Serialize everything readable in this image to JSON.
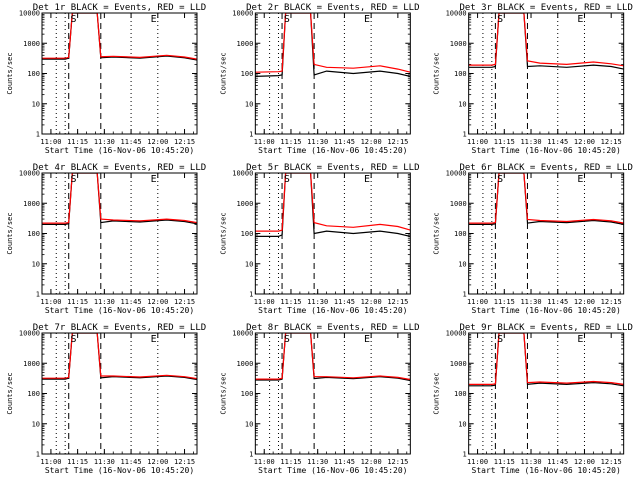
{
  "layout": {
    "rows": 3,
    "cols": 3
  },
  "colors": {
    "events": "#000000",
    "lld": "#ff0000",
    "axes": "#000000",
    "background": "#ffffff"
  },
  "chart_data": [
    {
      "type": "line",
      "title": "Det 1r BLACK = Events, RED = LLD",
      "ylabel": "Counts/sec",
      "xlabel": "Start Time (16-Nov-06 10:45:20)",
      "xticks": [
        "11:00",
        "11:15",
        "11:30",
        "11:45",
        "12:00",
        "12:15"
      ],
      "ytick_labels": [
        "1",
        "10",
        "100",
        "1000",
        "10000"
      ],
      "yscale": "log",
      "ylim": [
        1,
        10000
      ],
      "xlim": [
        "10:55",
        "12:22"
      ],
      "markers": {
        "dotted": [
          "11:03",
          "11:08",
          "11:45",
          "12:00"
        ],
        "dashed": [
          "11:10",
          "11:28"
        ],
        "letters": [
          {
            "text": "S",
            "at": "11:11"
          },
          {
            "text": "E",
            "at": "11:56"
          }
        ]
      },
      "series": [
        {
          "name": "Events",
          "color": "#000000",
          "x": [
            "10:55",
            "11:08",
            "11:10",
            "11:12",
            "11:26",
            "11:28",
            "11:35",
            "11:50",
            "12:05",
            "12:15",
            "12:22"
          ],
          "values": [
            300,
            300,
            320,
            10000,
            10000,
            330,
            350,
            320,
            380,
            330,
            280
          ]
        },
        {
          "name": "LLD",
          "color": "#ff0000",
          "x": [
            "10:55",
            "11:08",
            "11:10",
            "11:12",
            "11:26",
            "11:28",
            "11:35",
            "11:50",
            "12:05",
            "12:15",
            "12:22"
          ],
          "values": [
            320,
            320,
            340,
            10000,
            10000,
            360,
            370,
            340,
            400,
            350,
            300
          ]
        }
      ]
    },
    {
      "type": "line",
      "title": "Det 2r BLACK = Events, RED = LLD",
      "ylabel": "Counts/sec",
      "xlabel": "Start Time (16-Nov-06 10:45:20)",
      "xticks": [
        "11:00",
        "11:15",
        "11:30",
        "11:45",
        "12:00",
        "12:15"
      ],
      "ytick_labels": [
        "1",
        "10",
        "100",
        "1000",
        "10000"
      ],
      "yscale": "log",
      "ylim": [
        1,
        10000
      ],
      "xlim": [
        "10:55",
        "12:22"
      ],
      "markers": {
        "dotted": [
          "11:03",
          "11:08",
          "11:45",
          "12:00"
        ],
        "dashed": [
          "11:10",
          "11:28"
        ],
        "letters": [
          {
            "text": "S",
            "at": "11:11"
          },
          {
            "text": "E",
            "at": "11:56"
          }
        ]
      },
      "series": [
        {
          "name": "Events",
          "color": "#000000",
          "x": [
            "10:55",
            "11:08",
            "11:10",
            "11:12",
            "11:26",
            "11:28",
            "11:35",
            "11:50",
            "12:05",
            "12:15",
            "12:22"
          ],
          "values": [
            80,
            85,
            90,
            10000,
            10000,
            90,
            120,
            100,
            120,
            100,
            80
          ]
        },
        {
          "name": "LLD",
          "color": "#ff0000",
          "x": [
            "10:55",
            "11:08",
            "11:10",
            "11:12",
            "11:26",
            "11:28",
            "11:35",
            "11:50",
            "12:05",
            "12:15",
            "12:22"
          ],
          "values": [
            110,
            115,
            120,
            10000,
            10000,
            200,
            160,
            150,
            180,
            140,
            110
          ]
        }
      ]
    },
    {
      "type": "line",
      "title": "Det 3r BLACK = Events, RED = LLD",
      "ylabel": "Counts/sec",
      "xlabel": "Start Time (16-Nov-06 10:45:20)",
      "xticks": [
        "11:00",
        "11:15",
        "11:30",
        "11:45",
        "12:00",
        "12:15"
      ],
      "ytick_labels": [
        "1",
        "10",
        "100",
        "1000",
        "10000"
      ],
      "yscale": "log",
      "ylim": [
        1,
        10000
      ],
      "xlim": [
        "10:55",
        "12:22"
      ],
      "markers": {
        "dotted": [
          "11:03",
          "11:08",
          "11:45",
          "12:00"
        ],
        "dashed": [
          "11:10",
          "11:28"
        ],
        "letters": [
          {
            "text": "S",
            "at": "11:11"
          },
          {
            "text": "E",
            "at": "11:56"
          }
        ]
      },
      "series": [
        {
          "name": "Events",
          "color": "#000000",
          "x": [
            "10:55",
            "11:08",
            "11:10",
            "11:12",
            "11:26",
            "11:28",
            "11:35",
            "11:50",
            "12:05",
            "12:15",
            "12:22"
          ],
          "values": [
            160,
            160,
            170,
            10000,
            10000,
            170,
            180,
            160,
            190,
            170,
            140
          ]
        },
        {
          "name": "LLD",
          "color": "#ff0000",
          "x": [
            "10:55",
            "11:08",
            "11:10",
            "11:12",
            "11:26",
            "11:28",
            "11:35",
            "11:50",
            "12:05",
            "12:15",
            "12:22"
          ],
          "values": [
            190,
            190,
            200,
            10000,
            10000,
            260,
            220,
            200,
            240,
            210,
            180
          ]
        }
      ]
    },
    {
      "type": "line",
      "title": "Det 4r BLACK = Events, RED = LLD",
      "ylabel": "Counts/sec",
      "xlabel": "Start Time (16-Nov-06 10:45:20)",
      "xticks": [
        "11:00",
        "11:15",
        "11:30",
        "11:45",
        "12:00",
        "12:15"
      ],
      "ytick_labels": [
        "1",
        "10",
        "100",
        "1000",
        "10000"
      ],
      "yscale": "log",
      "ylim": [
        1,
        10000
      ],
      "xlim": [
        "10:55",
        "12:22"
      ],
      "markers": {
        "dotted": [
          "11:03",
          "11:08",
          "11:45",
          "12:00"
        ],
        "dashed": [
          "11:10",
          "11:28"
        ],
        "letters": [
          {
            "text": "S",
            "at": "11:11"
          },
          {
            "text": "E",
            "at": "11:56"
          }
        ]
      },
      "series": [
        {
          "name": "Events",
          "color": "#000000",
          "x": [
            "10:55",
            "11:08",
            "11:10",
            "11:12",
            "11:26",
            "11:28",
            "11:35",
            "11:50",
            "12:05",
            "12:15",
            "12:22"
          ],
          "values": [
            200,
            200,
            210,
            10000,
            10000,
            230,
            260,
            240,
            280,
            250,
            210
          ]
        },
        {
          "name": "LLD",
          "color": "#ff0000",
          "x": [
            "10:55",
            "11:08",
            "11:10",
            "11:12",
            "11:26",
            "11:28",
            "11:35",
            "11:50",
            "12:05",
            "12:15",
            "12:22"
          ],
          "values": [
            220,
            220,
            230,
            10000,
            10000,
            300,
            280,
            260,
            300,
            270,
            230
          ]
        }
      ]
    },
    {
      "type": "line",
      "title": "Det 5r BLACK = Events, RED = LLD",
      "ylabel": "Counts/sec",
      "xlabel": "Start Time (16-Nov-06 10:45:20)",
      "xticks": [
        "11:00",
        "11:15",
        "11:30",
        "11:45",
        "12:00",
        "12:15"
      ],
      "ytick_labels": [
        "1",
        "10",
        "100",
        "1000",
        "10000"
      ],
      "yscale": "log",
      "ylim": [
        1,
        10000
      ],
      "xlim": [
        "10:55",
        "12:22"
      ],
      "markers": {
        "dotted": [
          "11:03",
          "11:08",
          "11:45",
          "12:00"
        ],
        "dashed": [
          "11:10",
          "11:28"
        ],
        "letters": [
          {
            "text": "S",
            "at": "11:11"
          },
          {
            "text": "E",
            "at": "11:56"
          }
        ]
      },
      "series": [
        {
          "name": "Events",
          "color": "#000000",
          "x": [
            "10:55",
            "11:08",
            "11:10",
            "11:12",
            "11:26",
            "11:28",
            "11:35",
            "11:50",
            "12:05",
            "12:15",
            "12:22"
          ],
          "values": [
            80,
            80,
            90,
            10000,
            10000,
            100,
            120,
            100,
            120,
            100,
            80
          ]
        },
        {
          "name": "LLD",
          "color": "#ff0000",
          "x": [
            "10:55",
            "11:08",
            "11:10",
            "11:12",
            "11:26",
            "11:28",
            "11:35",
            "11:50",
            "12:05",
            "12:15",
            "12:22"
          ],
          "values": [
            120,
            120,
            130,
            10000,
            10000,
            230,
            180,
            160,
            200,
            170,
            130
          ]
        }
      ]
    },
    {
      "type": "line",
      "title": "Det 6r BLACK = Events, RED = LLD",
      "ylabel": "Counts/sec",
      "xlabel": "Start Time (16-Nov-06 10:45:20)",
      "xticks": [
        "11:00",
        "11:15",
        "11:30",
        "11:45",
        "12:00",
        "12:15"
      ],
      "ytick_labels": [
        "1",
        "10",
        "100",
        "1000",
        "10000"
      ],
      "yscale": "log",
      "ylim": [
        1,
        10000
      ],
      "xlim": [
        "10:55",
        "12:22"
      ],
      "markers": {
        "dotted": [
          "11:03",
          "11:08",
          "11:45",
          "12:00"
        ],
        "dashed": [
          "11:10",
          "11:28"
        ],
        "letters": [
          {
            "text": "S",
            "at": "11:11"
          },
          {
            "text": "E",
            "at": "11:56"
          }
        ]
      },
      "series": [
        {
          "name": "Events",
          "color": "#000000",
          "x": [
            "10:55",
            "11:08",
            "11:10",
            "11:12",
            "11:26",
            "11:28",
            "11:35",
            "11:50",
            "12:05",
            "12:15",
            "12:22"
          ],
          "values": [
            200,
            200,
            210,
            10000,
            10000,
            220,
            250,
            230,
            270,
            240,
            200
          ]
        },
        {
          "name": "LLD",
          "color": "#ff0000",
          "x": [
            "10:55",
            "11:08",
            "11:10",
            "11:12",
            "11:26",
            "11:28",
            "11:35",
            "11:50",
            "12:05",
            "12:15",
            "12:22"
          ],
          "values": [
            220,
            220,
            230,
            10000,
            10000,
            290,
            270,
            250,
            290,
            260,
            220
          ]
        }
      ]
    },
    {
      "type": "line",
      "title": "Det 7r BLACK = Events, RED = LLD",
      "ylabel": "Counts/sec",
      "xlabel": "Start Time (16-Nov-06 10:45:20)",
      "xticks": [
        "11:00",
        "11:15",
        "11:30",
        "11:45",
        "12:00",
        "12:15"
      ],
      "ytick_labels": [
        "1",
        "10",
        "100",
        "1000",
        "10000"
      ],
      "yscale": "log",
      "ylim": [
        1,
        10000
      ],
      "xlim": [
        "10:55",
        "12:22"
      ],
      "markers": {
        "dotted": [
          "11:03",
          "11:08",
          "11:45",
          "12:00"
        ],
        "dashed": [
          "11:10",
          "11:28"
        ],
        "letters": [
          {
            "text": "S",
            "at": "11:11"
          },
          {
            "text": "E",
            "at": "11:56"
          }
        ]
      },
      "series": [
        {
          "name": "Events",
          "color": "#000000",
          "x": [
            "10:55",
            "11:08",
            "11:10",
            "11:12",
            "11:26",
            "11:28",
            "11:35",
            "11:50",
            "12:05",
            "12:15",
            "12:22"
          ],
          "values": [
            300,
            300,
            320,
            10000,
            10000,
            330,
            360,
            330,
            380,
            340,
            290
          ]
        },
        {
          "name": "LLD",
          "color": "#ff0000",
          "x": [
            "10:55",
            "11:08",
            "11:10",
            "11:12",
            "11:26",
            "11:28",
            "11:35",
            "11:50",
            "12:05",
            "12:15",
            "12:22"
          ],
          "values": [
            320,
            320,
            340,
            10000,
            10000,
            380,
            380,
            350,
            400,
            360,
            310
          ]
        }
      ]
    },
    {
      "type": "line",
      "title": "Det 8r BLACK = Events, RED = LLD",
      "ylabel": "Counts/sec",
      "xlabel": "Start Time (16-Nov-06 10:45:20)",
      "xticks": [
        "11:00",
        "11:15",
        "11:30",
        "11:45",
        "12:00",
        "12:15"
      ],
      "ytick_labels": [
        "1",
        "10",
        "100",
        "1000",
        "10000"
      ],
      "yscale": "log",
      "ylim": [
        1,
        10000
      ],
      "xlim": [
        "10:55",
        "12:22"
      ],
      "markers": {
        "dotted": [
          "11:03",
          "11:08",
          "11:45",
          "12:00"
        ],
        "dashed": [
          "11:10",
          "11:28"
        ],
        "letters": [
          {
            "text": "S",
            "at": "11:11"
          },
          {
            "text": "E",
            "at": "11:56"
          }
        ]
      },
      "series": [
        {
          "name": "Events",
          "color": "#000000",
          "x": [
            "10:55",
            "11:08",
            "11:10",
            "11:12",
            "11:26",
            "11:28",
            "11:35",
            "11:50",
            "12:05",
            "12:15",
            "12:22"
          ],
          "values": [
            280,
            280,
            300,
            10000,
            10000,
            310,
            340,
            310,
            360,
            320,
            270
          ]
        },
        {
          "name": "LLD",
          "color": "#ff0000",
          "x": [
            "10:55",
            "11:08",
            "11:10",
            "11:12",
            "11:26",
            "11:28",
            "11:35",
            "11:50",
            "12:05",
            "12:15",
            "12:22"
          ],
          "values": [
            300,
            300,
            320,
            10000,
            10000,
            360,
            360,
            330,
            380,
            340,
            290
          ]
        }
      ]
    },
    {
      "type": "line",
      "title": "Det 9r BLACK = Events, RED = LLD",
      "ylabel": "Counts/sec",
      "xlabel": "Start Time (16-Nov-06 10:45:20)",
      "xticks": [
        "11:00",
        "11:15",
        "11:30",
        "11:45",
        "12:00",
        "12:15"
      ],
      "ytick_labels": [
        "1",
        "10",
        "100",
        "1000",
        "10000"
      ],
      "yscale": "log",
      "ylim": [
        1,
        10000
      ],
      "xlim": [
        "10:55",
        "12:22"
      ],
      "markers": {
        "dotted": [
          "11:03",
          "11:08",
          "11:45",
          "12:00"
        ],
        "dashed": [
          "11:10",
          "11:28"
        ],
        "letters": [
          {
            "text": "S",
            "at": "11:11"
          },
          {
            "text": "E",
            "at": "11:56"
          }
        ]
      },
      "series": [
        {
          "name": "Events",
          "color": "#000000",
          "x": [
            "10:55",
            "11:08",
            "11:10",
            "11:12",
            "11:26",
            "11:28",
            "11:35",
            "11:50",
            "12:05",
            "12:15",
            "12:22"
          ],
          "values": [
            180,
            180,
            190,
            10000,
            10000,
            200,
            220,
            200,
            230,
            210,
            180
          ]
        },
        {
          "name": "LLD",
          "color": "#ff0000",
          "x": [
            "10:55",
            "11:08",
            "11:10",
            "11:12",
            "11:26",
            "11:28",
            "11:35",
            "11:50",
            "12:05",
            "12:15",
            "12:22"
          ],
          "values": [
            200,
            200,
            210,
            10000,
            10000,
            230,
            240,
            220,
            250,
            230,
            200
          ]
        }
      ]
    }
  ]
}
